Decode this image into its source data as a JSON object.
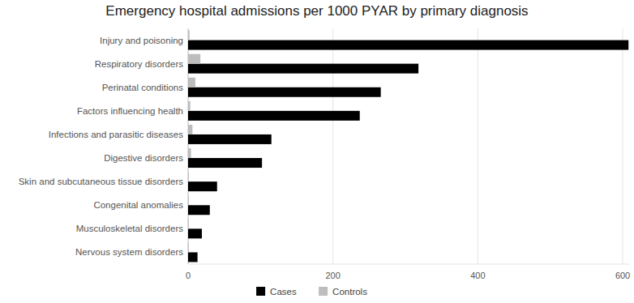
{
  "chart_data": {
    "type": "bar",
    "orientation": "horizontal",
    "title": "Emergency hospital admissions per 1000 PYAR by primary diagnosis",
    "categories": [
      "Injury and poisoning",
      "Respiratory disorders",
      "Perinatal conditions",
      "Factors influencing health",
      "Infections and parasitic diseases",
      "Digestive disorders",
      "Skin and subcutaneous tissue disorders",
      "Congenital anomalies",
      "Musculoskeletal disorders",
      "Nervous system disorders"
    ],
    "series": [
      {
        "name": "Cases",
        "color": "#000000",
        "values": [
          608,
          318,
          266,
          237,
          115,
          102,
          40,
          30,
          19,
          13
        ]
      },
      {
        "name": "Controls",
        "color": "#bdbdbd",
        "values": [
          2,
          17,
          10,
          3,
          6,
          4,
          1,
          1,
          1,
          1
        ]
      }
    ],
    "xlim": [
      0,
      610
    ],
    "xticks": [
      0,
      200,
      400,
      600
    ],
    "grid": true,
    "legend": "bottom"
  }
}
